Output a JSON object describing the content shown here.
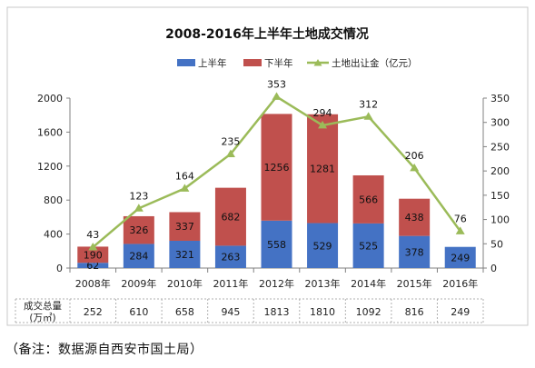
{
  "chart_data": {
    "type": "bar",
    "title": "2008-2016年上半年土地成交情况",
    "categories": [
      "2008年",
      "2009年",
      "2010年",
      "2011年",
      "2012年",
      "2013年",
      "2014年",
      "2015年",
      "2016年"
    ],
    "series": [
      {
        "name": "上半年",
        "type": "bar",
        "stack": "area",
        "color": "#4472C4",
        "values": [
          62,
          284,
          321,
          263,
          558,
          529,
          525,
          378,
          249
        ]
      },
      {
        "name": "下半年",
        "type": "bar",
        "stack": "area",
        "color": "#C0504D",
        "values": [
          190,
          326,
          337,
          682,
          1256,
          1281,
          566,
          438,
          null
        ]
      },
      {
        "name": "土地出让金（亿元）",
        "type": "line",
        "axis": "right",
        "color": "#9BBB59",
        "values": [
          43,
          123,
          164,
          235,
          353,
          294,
          312,
          206,
          76
        ]
      }
    ],
    "y_left": {
      "ylim": [
        0,
        2000
      ],
      "ticks": [
        0,
        400,
        800,
        1200,
        1600,
        2000
      ]
    },
    "y_right": {
      "ylim": [
        0,
        350
      ],
      "ticks": [
        0,
        50,
        100,
        150,
        200,
        250,
        300,
        350
      ]
    },
    "legend_position": "top",
    "table": {
      "row_label_line1": "成交总量",
      "row_label_line2": "(万㎡)",
      "values": [
        "252",
        "610",
        "658",
        "945",
        "1813",
        "1810",
        "1092",
        "816",
        "249"
      ]
    }
  },
  "note": "（备注：数据源自西安市国土局）"
}
